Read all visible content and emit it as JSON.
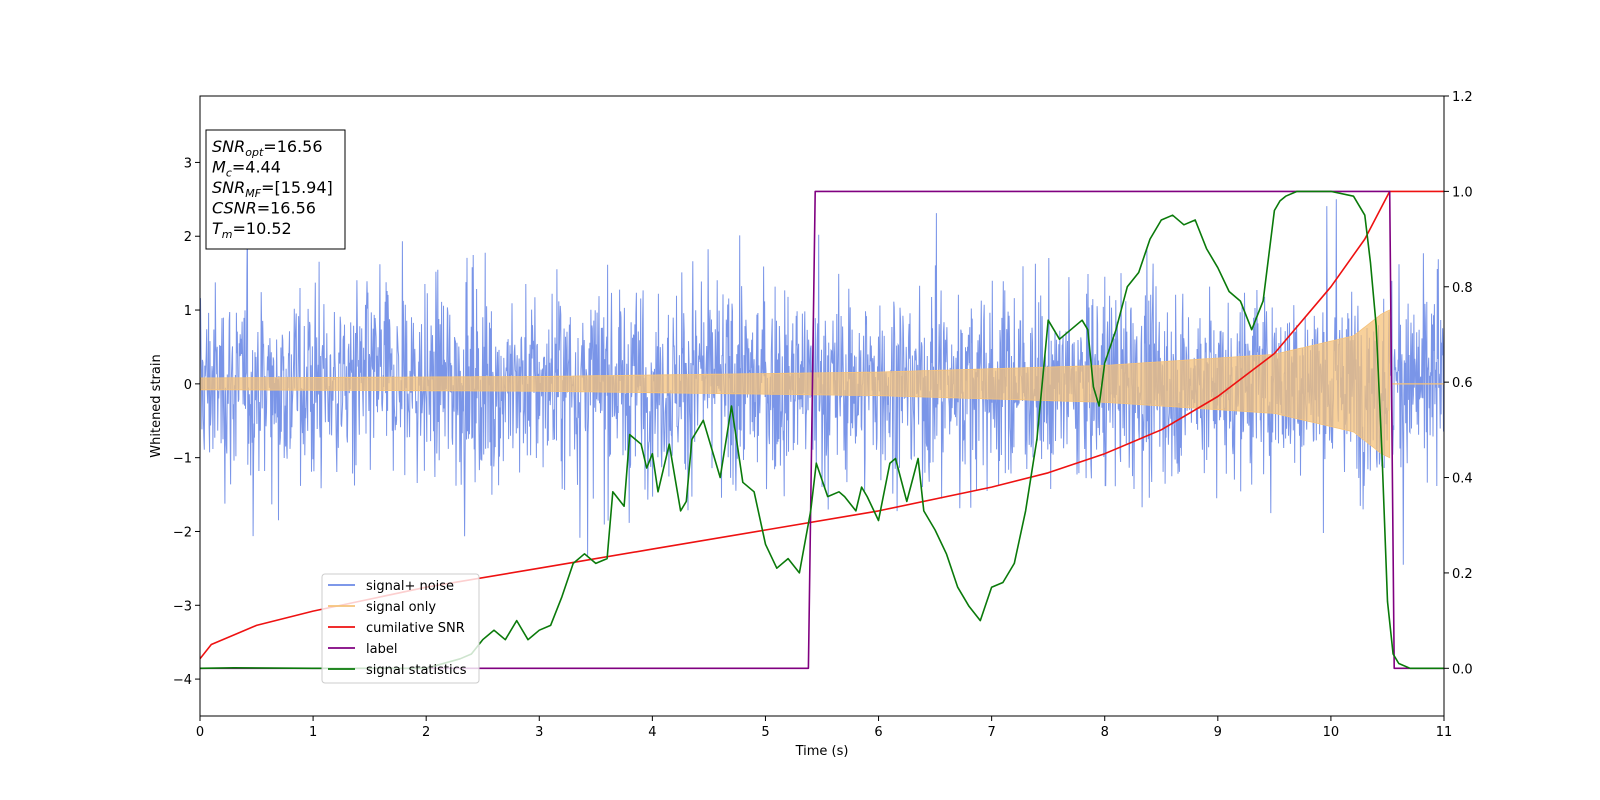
{
  "chart_data": {
    "type": "line",
    "xlabel": "Time (s)",
    "ylabel": "Whitened strain",
    "xlim": [
      0,
      11
    ],
    "ylim_left": [
      -4.5,
      3.9
    ],
    "ylim_right": [
      -0.1,
      1.2
    ],
    "x_ticks": [
      0,
      1,
      2,
      3,
      4,
      5,
      6,
      7,
      8,
      9,
      10,
      11
    ],
    "y_ticks_left": [
      3,
      2,
      1,
      0,
      -1,
      -2,
      -3,
      -4
    ],
    "y_tick_labels_left": [
      "3",
      "2",
      "1",
      "0",
      "−1",
      "−2",
      "−3",
      "−4"
    ],
    "y_ticks_right": [
      1.2,
      1.0,
      0.8,
      0.6,
      0.4,
      0.2,
      0.0
    ],
    "y_tick_labels_right": [
      "1.2",
      "1.0",
      "0.8",
      "0.6",
      "0.4",
      "0.2",
      "0.0"
    ],
    "annotations": [
      {
        "base": "SNR",
        "sub": "opt",
        "value": "=16.56"
      },
      {
        "base": "M",
        "sub": "c",
        "value": "=4.44"
      },
      {
        "base": "SNR",
        "sub": "MF",
        "value": "=[15.94]"
      },
      {
        "base": "CSNR",
        "sub": "",
        "value": "=16.56"
      },
      {
        "base": "T",
        "sub": "m",
        "value": "=10.52"
      }
    ],
    "legend_position": "lower-left",
    "series": [
      {
        "name": "signal+ noise",
        "axis": "left",
        "color": "#6b8ae6",
        "kind": "noise",
        "typical_amplitude": 1.6,
        "max_excursion": 4.2
      },
      {
        "name": "signal only",
        "axis": "left",
        "color": "#f5c27a",
        "kind": "chirp",
        "amplitude_points": [
          [
            0,
            0.08
          ],
          [
            3,
            0.1
          ],
          [
            6,
            0.16
          ],
          [
            8,
            0.25
          ],
          [
            9.5,
            0.4
          ],
          [
            10.2,
            0.65
          ],
          [
            10.45,
            0.95
          ],
          [
            10.52,
            1.0
          ],
          [
            10.53,
            0.0
          ],
          [
            11,
            0.0
          ]
        ]
      },
      {
        "name": "cumilative SNR",
        "axis": "right",
        "color": "#ee1111",
        "x": [
          0,
          0.1,
          0.5,
          1,
          2,
          3,
          4,
          5,
          6,
          7,
          7.5,
          8,
          8.5,
          9,
          9.5,
          10,
          10.3,
          10.52,
          11
        ],
        "y": [
          0.02,
          0.05,
          0.09,
          0.12,
          0.17,
          0.21,
          0.25,
          0.29,
          0.33,
          0.38,
          0.41,
          0.45,
          0.5,
          0.57,
          0.66,
          0.8,
          0.9,
          1.0,
          1.0
        ]
      },
      {
        "name": "label",
        "axis": "right",
        "color": "#800080",
        "x": [
          0,
          5.38,
          5.44,
          10.52,
          10.56,
          11
        ],
        "y": [
          0.0,
          0.0,
          1.0,
          1.0,
          0.0,
          0.0
        ]
      },
      {
        "name": "signal statistics",
        "axis": "right",
        "color": "#0a7a0a",
        "x": [
          0,
          0.3,
          1,
          2,
          2.3,
          2.4,
          2.5,
          2.6,
          2.7,
          2.8,
          2.9,
          3.0,
          3.1,
          3.2,
          3.3,
          3.4,
          3.5,
          3.6,
          3.65,
          3.75,
          3.8,
          3.9,
          3.95,
          4.0,
          4.05,
          4.15,
          4.25,
          4.3,
          4.35,
          4.45,
          4.6,
          4.7,
          4.75,
          4.8,
          4.9,
          5.0,
          5.1,
          5.2,
          5.3,
          5.4,
          5.45,
          5.55,
          5.65,
          5.7,
          5.8,
          5.85,
          5.9,
          6.0,
          6.1,
          6.15,
          6.25,
          6.35,
          6.4,
          6.5,
          6.6,
          6.7,
          6.8,
          6.9,
          7.0,
          7.1,
          7.2,
          7.3,
          7.4,
          7.5,
          7.6,
          7.7,
          7.8,
          7.85,
          7.9,
          7.95,
          8.0,
          8.1,
          8.2,
          8.3,
          8.4,
          8.5,
          8.6,
          8.7,
          8.8,
          8.9,
          9.0,
          9.1,
          9.2,
          9.3,
          9.4,
          9.5,
          9.55,
          9.6,
          9.7,
          9.8,
          10.0,
          10.2,
          10.3,
          10.35,
          10.4,
          10.45,
          10.5,
          10.55,
          10.6,
          10.7,
          11
        ],
        "y": [
          0.0,
          0.001,
          0.0,
          0.0,
          0.02,
          0.03,
          0.06,
          0.08,
          0.06,
          0.1,
          0.06,
          0.08,
          0.09,
          0.15,
          0.22,
          0.24,
          0.22,
          0.23,
          0.37,
          0.34,
          0.49,
          0.47,
          0.42,
          0.45,
          0.37,
          0.47,
          0.33,
          0.35,
          0.48,
          0.52,
          0.4,
          0.55,
          0.47,
          0.39,
          0.37,
          0.26,
          0.21,
          0.23,
          0.2,
          0.33,
          0.43,
          0.36,
          0.37,
          0.36,
          0.33,
          0.38,
          0.36,
          0.31,
          0.43,
          0.44,
          0.35,
          0.44,
          0.33,
          0.29,
          0.24,
          0.17,
          0.13,
          0.1,
          0.17,
          0.18,
          0.22,
          0.33,
          0.48,
          0.73,
          0.69,
          0.71,
          0.73,
          0.71,
          0.59,
          0.55,
          0.64,
          0.71,
          0.8,
          0.83,
          0.9,
          0.94,
          0.95,
          0.93,
          0.94,
          0.88,
          0.84,
          0.79,
          0.77,
          0.71,
          0.77,
          0.96,
          0.98,
          0.99,
          1.0,
          1.0,
          1.0,
          0.99,
          0.95,
          0.85,
          0.72,
          0.46,
          0.14,
          0.03,
          0.01,
          0.0,
          0.0
        ]
      }
    ]
  }
}
